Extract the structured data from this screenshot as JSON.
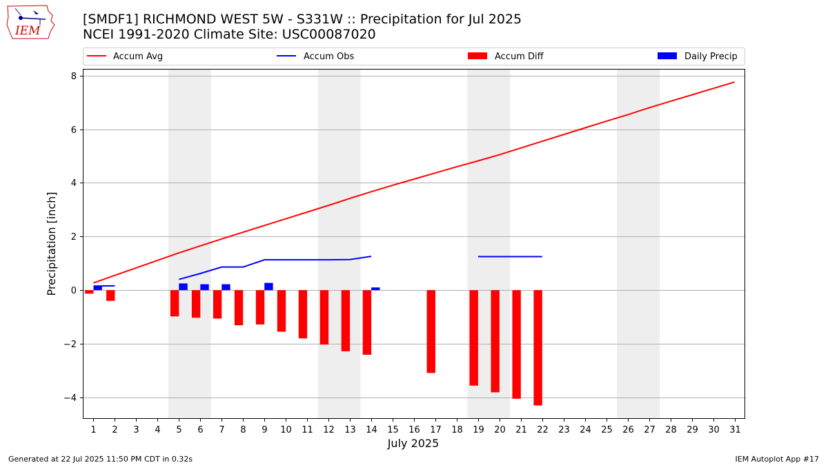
{
  "header": {
    "title_line1": "[SMDF1] RICHMOND WEST 5W - S331W :: Precipitation for Jul 2025",
    "title_line2": "NCEI 1991-2020 Climate Site: USC00087020",
    "logo_text": "IEM"
  },
  "footer": {
    "left": "Generated at 22 Jul 2025 11:50 PM CDT in 0.32s",
    "right": "IEM Autoplot App #17"
  },
  "colors": {
    "accum_avg": "#ff0000",
    "accum_obs": "#0000ff",
    "accum_diff": "#ff0000",
    "daily_precip": "#0000ff",
    "weekend_shade": "#eeeeee",
    "grid": "#b0b0b0"
  },
  "chart_data": {
    "type": "bar",
    "xlabel": "July 2025",
    "ylabel": "Precipitation [inch]",
    "ylim": [
      -4.8,
      8.25
    ],
    "xlim": [
      0.5,
      31.5
    ],
    "yticks": [
      "8",
      "6",
      "4",
      "2",
      "0",
      "−2",
      "−4"
    ],
    "ytick_values": [
      8,
      6,
      4,
      2,
      0,
      -2,
      -4
    ],
    "days": [
      1,
      2,
      3,
      4,
      5,
      6,
      7,
      8,
      9,
      10,
      11,
      12,
      13,
      14,
      15,
      16,
      17,
      18,
      19,
      20,
      21,
      22,
      23,
      24,
      25,
      26,
      27,
      28,
      29,
      30,
      31
    ],
    "grid": true,
    "legend_position": "top",
    "weekend_shaded_ranges": [
      [
        5,
        6
      ],
      [
        12,
        13
      ],
      [
        19,
        20
      ],
      [
        26,
        27
      ]
    ],
    "series": [
      {
        "name": "Accum Avg",
        "kind": "line",
        "color": "#ff0000",
        "x": [
          1,
          2,
          3,
          4,
          5,
          6,
          7,
          8,
          9,
          10,
          11,
          12,
          13,
          14,
          15,
          16,
          17,
          18,
          19,
          20,
          21,
          22,
          23,
          24,
          25,
          26,
          27,
          28,
          29,
          30,
          31
        ],
        "values": [
          0.27,
          0.55,
          0.83,
          1.11,
          1.39,
          1.65,
          1.91,
          2.16,
          2.41,
          2.66,
          2.91,
          3.16,
          3.42,
          3.67,
          3.91,
          4.14,
          4.37,
          4.6,
          4.82,
          5.05,
          5.3,
          5.55,
          5.8,
          6.05,
          6.3,
          6.54,
          6.8,
          7.04,
          7.28,
          7.52,
          7.76
        ]
      },
      {
        "name": "Accum Obs",
        "kind": "line",
        "color": "#0000ff",
        "segments": [
          {
            "x": [
              1,
              2
            ],
            "values": [
              0.15,
              0.16
            ]
          },
          {
            "x": [
              5,
              6,
              7,
              8,
              9,
              10,
              11,
              12,
              13,
              14
            ],
            "values": [
              0.4,
              0.62,
              0.86,
              0.86,
              1.13,
              1.13,
              1.13,
              1.13,
              1.14,
              1.26
            ]
          },
          {
            "x": [
              19,
              20,
              21,
              22
            ],
            "values": [
              1.25,
              1.25,
              1.25,
              1.25
            ]
          }
        ]
      },
      {
        "name": "Accum Diff",
        "kind": "bar",
        "color": "#ff0000",
        "x": [
          1,
          2,
          5,
          6,
          7,
          8,
          9,
          10,
          11,
          12,
          13,
          14,
          17,
          19,
          20,
          21,
          22
        ],
        "values": [
          -0.13,
          -0.4,
          -0.98,
          -1.03,
          -1.06,
          -1.31,
          -1.28,
          -1.55,
          -1.8,
          -2.03,
          -2.28,
          -2.41,
          -3.09,
          -3.56,
          -3.81,
          -4.05,
          -4.3
        ]
      },
      {
        "name": "Daily Precip",
        "kind": "bar",
        "color": "#0000ff",
        "x": [
          1,
          5,
          6,
          7,
          9,
          14
        ],
        "values": [
          0.15,
          0.25,
          0.22,
          0.22,
          0.27,
          0.1
        ]
      }
    ]
  }
}
